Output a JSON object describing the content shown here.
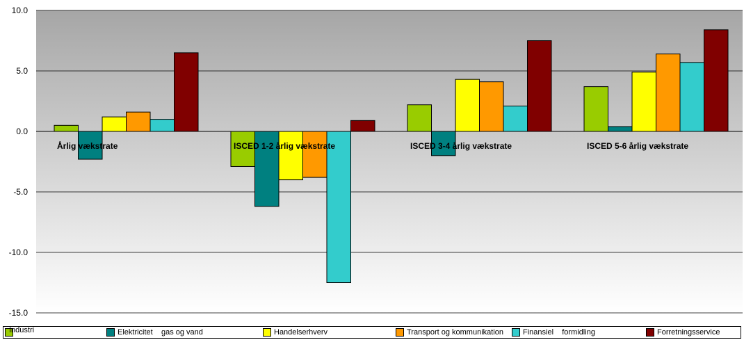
{
  "chart_data": {
    "type": "bar",
    "title": "",
    "xlabel": "",
    "ylabel": "",
    "ylim": [
      -15,
      10
    ],
    "yticks": [
      "10.0",
      "5.0",
      "0.0",
      "-5.0",
      "-10.0",
      "-15.0"
    ],
    "grid": true,
    "legend_position": "bottom",
    "categories": [
      "Årlig vækstrate",
      "ISCED 1-2 årlig vækstrate",
      "ISCED 3-4 årlig vækstrate",
      "ISCED 5-6 årlig vækstrate"
    ],
    "series": [
      {
        "name": "Industri",
        "color": "#99cc00",
        "values": [
          0.5,
          -2.9,
          2.2,
          3.7
        ]
      },
      {
        "name": "Elektricitet    gas og vand",
        "color": "#008080",
        "values": [
          -2.3,
          -6.2,
          -2.0,
          0.4
        ]
      },
      {
        "name": "Handelserhverv",
        "color": "#ffff00",
        "values": [
          1.2,
          -4.0,
          4.3,
          4.9
        ]
      },
      {
        "name": "Transport og kommunikation",
        "color": "#ff9900",
        "values": [
          1.6,
          -3.8,
          4.1,
          6.4
        ]
      },
      {
        "name": "Finansiel    formidling",
        "color": "#33cccc",
        "values": [
          1.0,
          -12.5,
          2.1,
          5.7
        ]
      },
      {
        "name": "Forretningsservice",
        "color": "#800000",
        "values": [
          6.5,
          0.9,
          7.5,
          8.4
        ]
      }
    ]
  }
}
